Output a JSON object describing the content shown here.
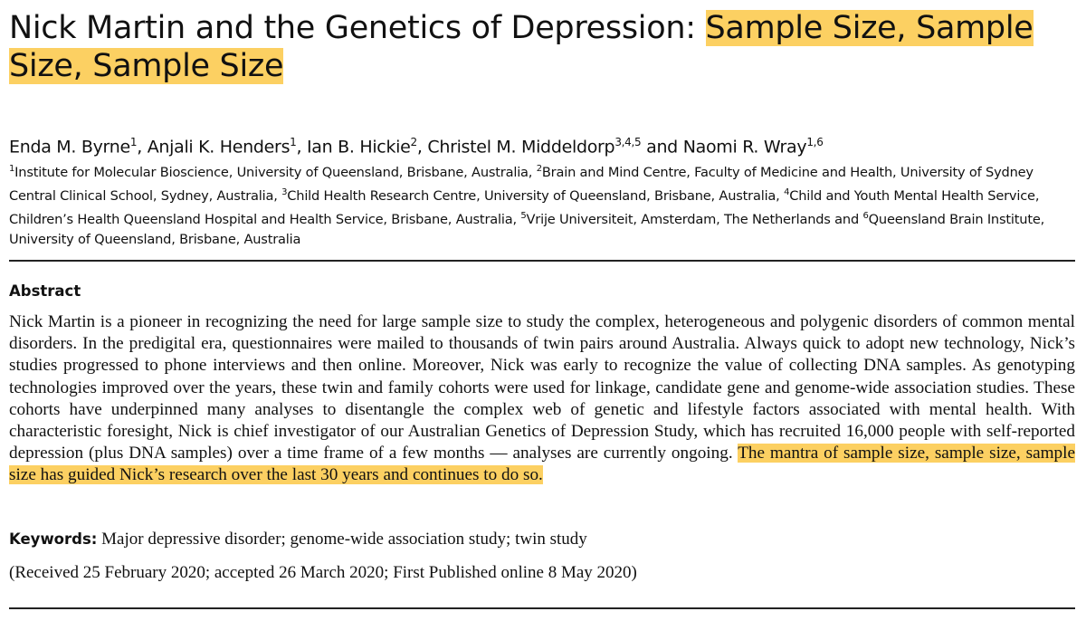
{
  "title": {
    "plain": "Nick Martin and the Genetics of Depression: ",
    "highlight": "Sample Size, Sample Size, Sample Size"
  },
  "authors": [
    {
      "name": "Enda M. Byrne",
      "aff": "1",
      "sep": ", "
    },
    {
      "name": "Anjali K. Henders",
      "aff": "1",
      "sep": ", "
    },
    {
      "name": "Ian B. Hickie",
      "aff": "2",
      "sep": ", "
    },
    {
      "name": "Christel M. Middeldorp",
      "aff": "3,4,5",
      "sep": " and "
    },
    {
      "name": "Naomi R. Wray",
      "aff": "1,6",
      "sep": ""
    }
  ],
  "affiliations": [
    {
      "num": "1",
      "text": "Institute for Molecular Bioscience, University of Queensland, Brisbane, Australia, "
    },
    {
      "num": "2",
      "text": "Brain and Mind Centre, Faculty of Medicine and Health, University of Sydney Central Clinical School, Sydney, Australia, "
    },
    {
      "num": "3",
      "text": "Child Health Research Centre, University of Queensland, Brisbane, Australia, "
    },
    {
      "num": "4",
      "text": "Child and Youth Mental Health Service, Children’s Health Queensland Hospital and Health Service, Brisbane, Australia, "
    },
    {
      "num": "5",
      "text": "Vrije Universiteit, Amsterdam, The Netherlands and "
    },
    {
      "num": "6",
      "text": "Queensland Brain Institute, University of Queensland, Brisbane, Australia"
    }
  ],
  "abstract": {
    "heading": "Abstract",
    "plain": "Nick Martin is a pioneer in recognizing the need for large sample size to study the complex, heterogeneous and polygenic disorders of common mental disorders. In the predigital era, questionnaires were mailed to thousands of twin pairs around Australia. Always quick to adopt new technology, Nick’s studies progressed to phone interviews and then online. Moreover, Nick was early to recognize the value of collecting DNA samples. As genotyping technologies improved over the years, these twin and family cohorts were used for linkage, candidate gene and genome-wide association studies. These cohorts have underpinned many analyses to disentangle the complex web of genetic and lifestyle factors associated with mental health. With characteristic foresight, Nick is chief investigator of our Australian Genetics of Depression Study, which has recruited 16,000 people with self-reported depression (plus DNA samples) over a time frame of a few months — analyses are currently ongoing. ",
    "highlight": "The mantra of sample size, sample size, sample size has guided Nick’s research over the last 30 years and continues to do so."
  },
  "keywords": {
    "label": "Keywords:",
    "text": " Major depressive disorder; genome-wide association study; twin study"
  },
  "received": "(Received 25 February 2020; accepted 26 March 2020; First Published online 8 May 2020)",
  "colors": {
    "highlight": "#fcd062"
  }
}
